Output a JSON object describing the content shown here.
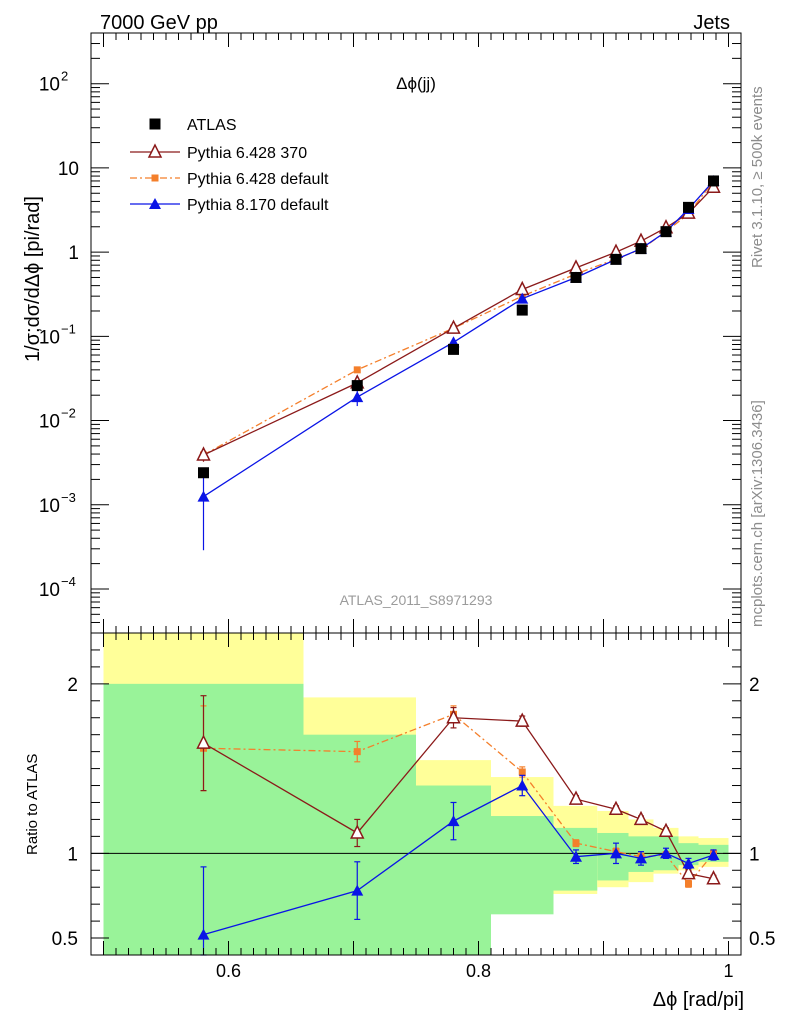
{
  "header": {
    "left": "7000 GeV pp",
    "right": "Jets"
  },
  "side_labels": {
    "rivet": "Rivet 3.1.10, ≥ 500k events",
    "mcplots": "mcplots.cern.ch [arXiv:1306.3436]"
  },
  "chart_data": {
    "type": "line",
    "title": "Δϕ(jj)",
    "analysis_tag": "ATLAS_2011_S8971293",
    "xlabel": "Δϕ [rad/pi]",
    "ylabel": "1/σ;dσ/dΔϕ [pi/rad]",
    "ratio_ylabel": "Ratio to ATLAS",
    "xlim": [
      0.49,
      1.01
    ],
    "ylim": [
      3e-05,
      400
    ],
    "ratio_ylim": [
      0.4,
      2.3
    ],
    "y_scale": "log",
    "x_ticks": [
      "0.6",
      "0.8",
      "1"
    ],
    "ratio_ticks": [
      "0.5",
      "1",
      "2"
    ],
    "legend_position": "top-left",
    "data": {
      "name": "ATLAS",
      "color": "#000000",
      "x": [
        0.58,
        0.703,
        0.78,
        0.835,
        0.878,
        0.91,
        0.93,
        0.95,
        0.968,
        0.988
      ],
      "y": [
        0.0024,
        0.026,
        0.07,
        0.205,
        0.5,
        0.82,
        1.1,
        1.75,
        3.4,
        7.0
      ]
    },
    "series": [
      {
        "name": "Pythia 6.428 370",
        "color": "#8b1a1a",
        "marker": "open-triangle",
        "dash": "solid",
        "y": [
          0.0039,
          0.028,
          0.125,
          0.36,
          0.65,
          1.0,
          1.35,
          1.95,
          2.9,
          5.9
        ],
        "ratio": [
          1.65,
          1.12,
          1.8,
          1.78,
          1.32,
          1.26,
          1.2,
          1.13,
          0.88,
          0.85
        ],
        "ratio_err": [
          0.28,
          0.08,
          0.06,
          0.03,
          0.02,
          0.02,
          0.02,
          0.02,
          0.02,
          0.02
        ]
      },
      {
        "name": "Pythia 6.428 default",
        "color": "#f47f2b",
        "marker": "small-square",
        "dash": "dashdot",
        "y": [
          0.0039,
          0.04,
          0.125,
          0.3,
          0.55,
          0.83,
          1.08,
          1.75,
          2.85,
          7.0
        ],
        "ratio": [
          1.62,
          1.6,
          1.82,
          1.48,
          1.06,
          1.01,
          0.98,
          0.99,
          0.82,
          1.0
        ],
        "ratio_err": [
          0.25,
          0.06,
          0.05,
          0.03,
          0.02,
          0.02,
          0.02,
          0.02,
          0.02,
          0.02
        ]
      },
      {
        "name": "Pythia 8.170 default",
        "color": "#0a14e6",
        "marker": "filled-triangle",
        "dash": "solid",
        "y": [
          0.00125,
          0.019,
          0.085,
          0.28,
          0.5,
          0.82,
          1.1,
          1.75,
          3.25,
          7.0
        ],
        "ratio": [
          0.52,
          0.78,
          1.19,
          1.4,
          0.98,
          1.0,
          0.97,
          1.0,
          0.94,
          0.99
        ],
        "ratio_err": [
          0.4,
          0.17,
          0.11,
          0.06,
          0.04,
          0.06,
          0.04,
          0.03,
          0.03,
          0.03
        ]
      }
    ],
    "bands": {
      "edges": [
        0.5,
        0.66,
        0.75,
        0.81,
        0.86,
        0.895,
        0.92,
        0.94,
        0.96,
        0.976,
        1.0
      ],
      "green_low": [
        0.4,
        0.4,
        0.4,
        0.64,
        0.78,
        0.84,
        0.89,
        0.9,
        0.93,
        0.95
      ],
      "green_high": [
        2.0,
        1.7,
        1.4,
        1.22,
        1.15,
        1.12,
        1.1,
        1.1,
        1.06,
        1.05
      ],
      "yellow_low": [
        0.4,
        0.53,
        0.62,
        0.7,
        0.76,
        0.8,
        0.83,
        0.88,
        0.9,
        0.92
      ],
      "yellow_high": [
        2.3,
        1.92,
        1.55,
        1.45,
        1.28,
        1.25,
        1.2,
        1.15,
        1.1,
        1.09
      ]
    }
  }
}
